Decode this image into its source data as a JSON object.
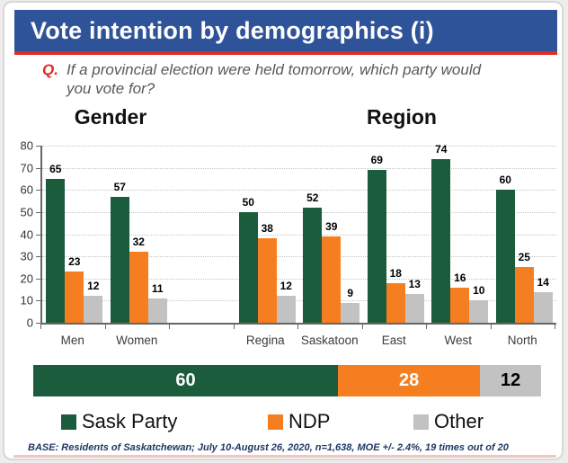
{
  "header": {
    "title": "Vote intention by demographics (i)"
  },
  "question": {
    "prefix": "Q.",
    "text": "If a provincial election were held tomorrow, which party would you vote for?"
  },
  "sections": {
    "left": "Gender",
    "right": "Region"
  },
  "colors": {
    "sask_party": "#1a5c3b",
    "ndp": "#f57e20",
    "other": "#c2c2c2",
    "header_blue": "#2f5398",
    "accent_red": "#e02a25",
    "footer_navy": "#1f3864"
  },
  "chart_data": {
    "type": "bar",
    "categories": [
      "Men",
      "Women",
      "Regina",
      "Saskatoon",
      "East",
      "West",
      "North"
    ],
    "series": [
      {
        "name": "Sask Party",
        "color": "#1a5c3b",
        "values": [
          65,
          57,
          50,
          52,
          69,
          74,
          60
        ]
      },
      {
        "name": "NDP",
        "color": "#f57e20",
        "values": [
          23,
          32,
          38,
          39,
          18,
          16,
          25
        ]
      },
      {
        "name": "Other",
        "color": "#c2c2c2",
        "values": [
          12,
          11,
          12,
          9,
          13,
          10,
          14
        ]
      }
    ],
    "ylim": [
      0,
      80
    ],
    "yticks": [
      0,
      10,
      20,
      30,
      40,
      50,
      60,
      70,
      80
    ],
    "grid": "horizontal-dotted",
    "legend_position": "bottom",
    "layout": {
      "gap_after_index": 1,
      "group_titles": [
        "Gender",
        "Region"
      ]
    }
  },
  "summary_bar": {
    "segments": [
      {
        "label": "Sask Party",
        "value": 60,
        "color": "#1a5c3b",
        "text_color": "#ffffff"
      },
      {
        "label": "NDP",
        "value": 28,
        "color": "#f57e20",
        "text_color": "#ffffff"
      },
      {
        "label": "Other",
        "value": 12,
        "color": "#c2c2c2",
        "text_color": "#000000"
      }
    ]
  },
  "legend": {
    "items": [
      {
        "label": "Sask Party",
        "color": "#1a5c3b"
      },
      {
        "label": "NDP",
        "color": "#f57e20"
      },
      {
        "label": "Other",
        "color": "#c2c2c2"
      }
    ]
  },
  "footer": {
    "base_note": "BASE: Residents of Saskatchewan; July 10-August 26, 2020, n=1,638, MOE +/- 2.4%, 19 times out of 20"
  }
}
